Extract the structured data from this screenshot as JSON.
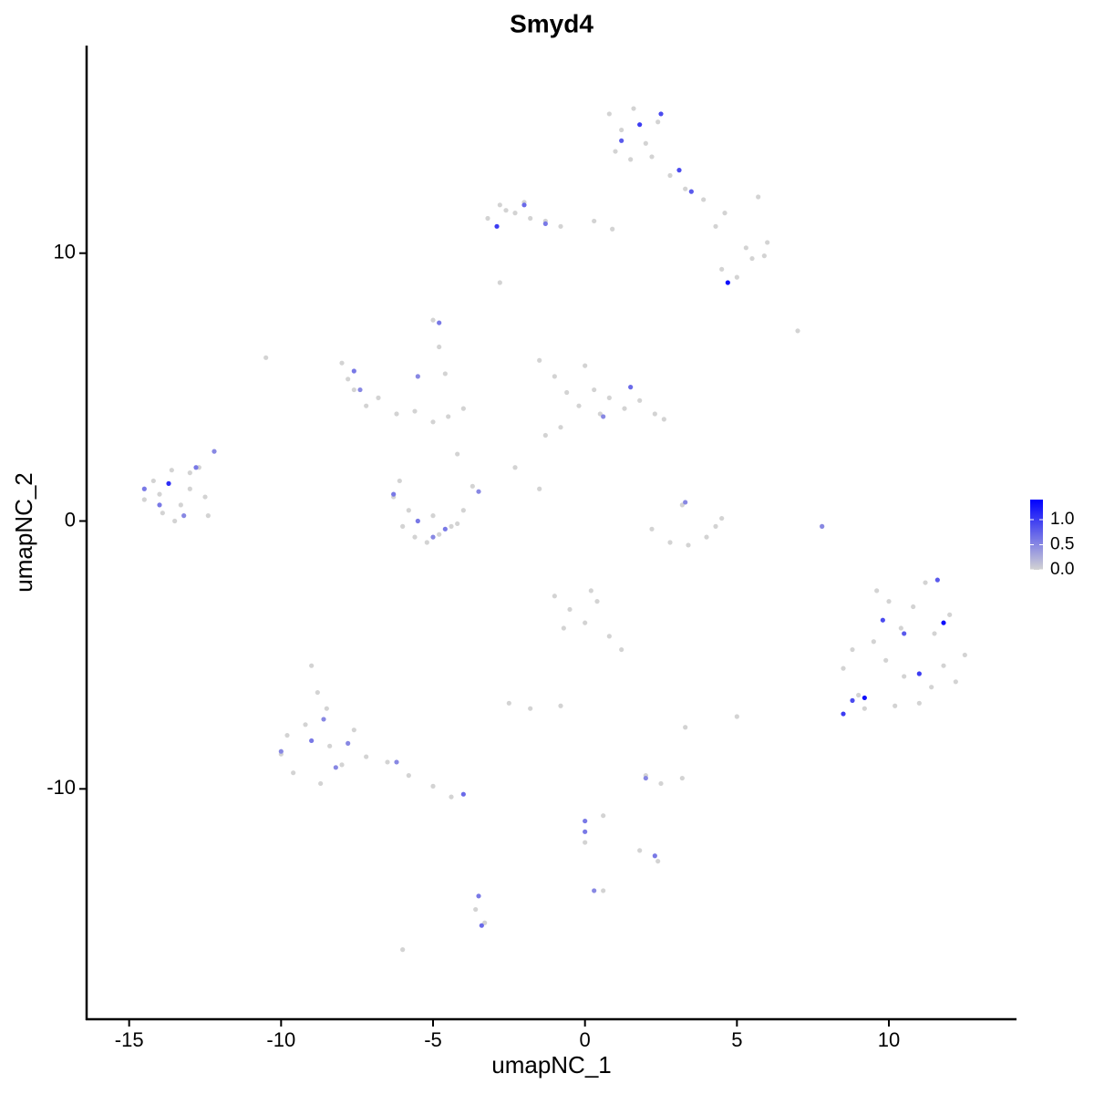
{
  "chart_data": {
    "type": "scatter",
    "title": "Smyd4",
    "x_label": "umapNC_1",
    "y_label": "umapNC_2",
    "xlim": [
      -16.4,
      14.2
    ],
    "xticks": [
      -15,
      -10,
      -5,
      0,
      5,
      10
    ],
    "ylim": [
      -18.6,
      17.75
    ],
    "yticks": [
      -10,
      0,
      10
    ],
    "color_low": "#d3d3d3",
    "color_high": "#0000ff",
    "colorlim": [
      0,
      1.4
    ],
    "colorticks": [
      {
        "value": 0,
        "label": "0.0"
      },
      {
        "value": 0.5,
        "label": "0.5"
      },
      {
        "value": 1,
        "label": "1.0"
      }
    ],
    "x": [
      -14.5,
      -14.2,
      -13.9,
      -13.6,
      -13.3,
      -13.0,
      -12.7,
      -12.4,
      -14.0,
      -13.5,
      -13.0,
      -12.5,
      0.8,
      1.2,
      1.6,
      2.0,
      2.4,
      1.0,
      1.5,
      2.2,
      2.8,
      3.3,
      3.9,
      4.6,
      5.3,
      5.9,
      4.5,
      5.0,
      5.5,
      6.0,
      4.3,
      5.7,
      -3.2,
      -2.8,
      -2.3,
      -1.8,
      -1.3,
      -0.8,
      0.3,
      0.9,
      -2.6,
      -2.0,
      -1.5,
      -1.0,
      -0.6,
      -0.2,
      0.3,
      0.8,
      1.3,
      1.8,
      2.3,
      2.6,
      -0.8,
      0.0,
      -1.3,
      0.5,
      -8.0,
      -7.6,
      -7.2,
      -6.8,
      -6.2,
      -5.6,
      -5.0,
      -4.5,
      -7.8,
      -4.0,
      -5.0,
      -4.8,
      -4.6,
      -4.2,
      -2.3,
      -1.5,
      -6.3,
      -6.0,
      -5.6,
      -5.2,
      -4.8,
      -4.4,
      -4.0,
      -3.7,
      -5.8,
      -5.0,
      -4.2,
      -6.1,
      2.2,
      2.8,
      3.4,
      4.0,
      4.5,
      3.2,
      4.3,
      8.5,
      9.0,
      9.5,
      10.0,
      10.5,
      11.0,
      11.5,
      12.0,
      12.5,
      8.8,
      9.6,
      10.4,
      11.2,
      12.2,
      9.2,
      10.2,
      11.8,
      10.8,
      9.9,
      11.4,
      -10.0,
      -9.6,
      -9.2,
      -8.8,
      -8.4,
      -8.0,
      -7.6,
      -9.0,
      -8.5,
      -9.8,
      -7.2,
      -6.5,
      -5.8,
      -5.0,
      -4.4,
      -8.7,
      -1.0,
      -0.5,
      0.0,
      0.4,
      0.8,
      1.2,
      -0.7,
      0.2,
      -2.5,
      -1.8,
      -0.8,
      2.0,
      2.5,
      3.2,
      5.0,
      3.3,
      0.6,
      0.0,
      1.8,
      2.4,
      -3.6,
      -3.3,
      -6.0,
      -10.5,
      7.0,
      7.8,
      -2.8,
      0.6,
      -14.5,
      -13.7,
      -13.2,
      -12.8,
      -12.2,
      -14.0,
      1.2,
      1.8,
      2.5,
      3.1,
      3.5,
      4.7,
      -2.9,
      -2.0,
      -1.3,
      -7.6,
      -7.4,
      -5.5,
      -4.8,
      1.5,
      0.6,
      -6.3,
      -5.5,
      -5.0,
      -4.6,
      -3.5,
      3.3,
      7.8,
      9.2,
      9.8,
      10.5,
      11.0,
      11.6,
      11.8,
      8.5,
      8.8,
      -10.0,
      -9.0,
      -8.6,
      -8.2,
      -7.8,
      -6.2,
      -4.0,
      0.0,
      0.0,
      2.0,
      2.3,
      -3.5,
      -3.4,
      0.3
    ],
    "y": [
      0.8,
      1.5,
      0.3,
      1.9,
      0.6,
      1.2,
      2.0,
      0.2,
      1.0,
      0.0,
      1.8,
      0.9,
      15.2,
      14.6,
      15.4,
      14.1,
      14.9,
      13.8,
      13.5,
      13.6,
      12.9,
      12.4,
      12.0,
      11.5,
      10.2,
      9.9,
      9.4,
      9.1,
      9.8,
      10.4,
      11.0,
      12.1,
      11.3,
      11.8,
      11.5,
      11.3,
      11.2,
      11.0,
      11.2,
      10.9,
      11.6,
      11.9,
      6.0,
      5.4,
      4.8,
      4.3,
      4.9,
      4.6,
      4.2,
      4.5,
      4.0,
      3.8,
      3.5,
      5.8,
      3.2,
      4.0,
      5.9,
      4.9,
      4.3,
      4.6,
      4.0,
      4.1,
      3.7,
      3.9,
      5.3,
      4.2,
      7.5,
      6.5,
      5.5,
      2.5,
      2.0,
      1.2,
      0.9,
      -0.2,
      -0.6,
      -0.8,
      -0.5,
      -0.2,
      0.4,
      1.3,
      0.4,
      0.2,
      -0.1,
      1.5,
      -0.3,
      -0.8,
      -0.9,
      -0.6,
      0.1,
      0.6,
      -0.2,
      -5.5,
      -6.5,
      -4.5,
      -3.0,
      -5.8,
      -6.8,
      -4.2,
      -3.5,
      -5.0,
      -4.8,
      -2.6,
      -4.0,
      -2.3,
      -6.0,
      -7.0,
      -6.9,
      -5.4,
      -3.2,
      -5.2,
      -6.2,
      -8.7,
      -9.4,
      -7.6,
      -6.4,
      -8.4,
      -9.1,
      -7.8,
      -5.4,
      -7.0,
      -8.0,
      -8.8,
      -9.0,
      -9.5,
      -9.9,
      -10.3,
      -9.8,
      -2.8,
      -3.3,
      -3.8,
      -3.0,
      -4.3,
      -4.8,
      -4.0,
      -2.6,
      -6.8,
      -7.0,
      -6.9,
      -9.5,
      -9.8,
      -9.6,
      -7.3,
      -7.7,
      -11.0,
      -12.0,
      -12.3,
      -12.7,
      -14.5,
      -15.0,
      -16.0,
      6.1,
      7.1,
      -0.2,
      8.9,
      -13.8,
      1.2,
      1.4,
      0.2,
      2.0,
      2.6,
      0.6,
      14.2,
      14.8,
      15.2,
      13.1,
      12.3,
      8.9,
      11.0,
      11.8,
      11.1,
      5.6,
      4.9,
      5.4,
      7.4,
      5.0,
      3.9,
      1.0,
      0.0,
      -0.6,
      -0.3,
      1.1,
      0.7,
      -0.2,
      -6.6,
      -3.7,
      -4.2,
      -5.7,
      -2.2,
      -3.8,
      -7.2,
      -6.7,
      -8.6,
      -8.2,
      -7.4,
      -9.2,
      -8.3,
      -9.0,
      -10.2,
      -11.2,
      -11.6,
      -9.6,
      -12.5,
      -14.0,
      -15.1,
      -13.8
    ],
    "values": [
      0,
      0,
      0,
      0,
      0,
      0,
      0,
      0,
      0,
      0,
      0,
      0,
      0,
      0,
      0,
      0,
      0,
      0,
      0,
      0,
      0,
      0,
      0,
      0,
      0,
      0,
      0,
      0,
      0,
      0,
      0,
      0,
      0,
      0,
      0,
      0,
      0,
      0,
      0,
      0,
      0,
      0,
      0,
      0,
      0,
      0,
      0,
      0,
      0,
      0,
      0,
      0,
      0,
      0,
      0,
      0,
      0,
      0,
      0,
      0,
      0,
      0,
      0,
      0,
      0,
      0,
      0,
      0,
      0,
      0,
      0,
      0,
      0,
      0,
      0,
      0,
      0,
      0,
      0,
      0,
      0,
      0,
      0,
      0,
      0,
      0,
      0,
      0,
      0,
      0,
      0,
      0,
      0,
      0,
      0,
      0,
      0,
      0,
      0,
      0,
      0,
      0,
      0,
      0,
      0,
      0,
      0,
      0,
      0,
      0,
      0,
      0,
      0,
      0,
      0,
      0,
      0,
      0,
      0,
      0,
      0,
      0,
      0,
      0,
      0,
      0,
      0,
      0,
      0,
      0,
      0,
      0,
      0,
      0,
      0,
      0,
      0,
      0,
      0,
      0,
      0,
      0,
      0,
      0,
      0,
      0,
      0,
      0,
      0,
      0,
      0,
      0,
      0,
      0,
      0,
      0.6,
      1.1,
      0.5,
      0.6,
      0.5,
      0.6,
      0.8,
      1.0,
      0.9,
      0.9,
      0.8,
      1.3,
      1.0,
      0.7,
      0.6,
      0.6,
      0.5,
      0.5,
      0.6,
      0.7,
      0.5,
      0.6,
      0.6,
      0.5,
      0.6,
      0.5,
      0.5,
      0.5,
      1.3,
      0.9,
      0.8,
      1.0,
      0.8,
      1.3,
      1.0,
      0.9,
      0.5,
      0.6,
      0.5,
      0.5,
      0.5,
      0.5,
      0.7,
      0.6,
      0.6,
      0.5,
      0.6,
      0.6,
      0.7,
      0.5
    ]
  }
}
